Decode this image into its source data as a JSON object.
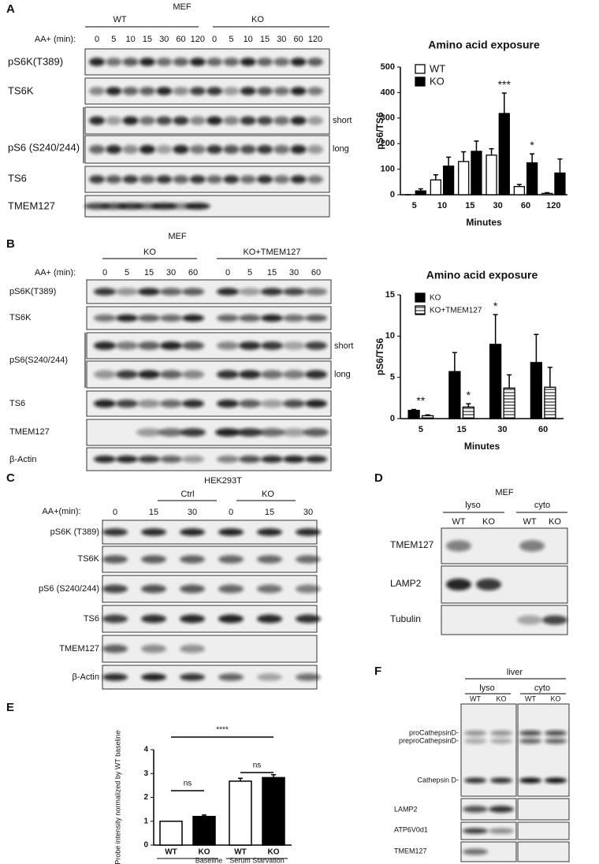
{
  "figure": {
    "A": {
      "label": "A",
      "cell_line": "MEF",
      "groups": [
        "WT",
        "KO"
      ],
      "lane_title": "AA+ (min):",
      "lanes": [
        "0",
        "5",
        "10",
        "15",
        "30",
        "60",
        "120",
        "0",
        "5",
        "10",
        "15",
        "30",
        "60",
        "120"
      ],
      "rows": [
        "pS6K(T389)",
        "TS6K",
        "pS6 (S240/244)",
        "TS6",
        "TMEM127"
      ],
      "exposures": [
        "short",
        "long"
      ]
    },
    "B": {
      "label": "B",
      "cell_line": "MEF",
      "groups": [
        "KO",
        "KO+TMEM127"
      ],
      "lane_title": "AA+ (min):",
      "lanes": [
        "0",
        "5",
        "15",
        "30",
        "60",
        "0",
        "5",
        "15",
        "30",
        "60"
      ],
      "rows": [
        "pS6K(T389)",
        "TS6K",
        "pS6(S240/244)",
        "TS6",
        "TMEM127",
        "β-Actin"
      ],
      "exposures": [
        "short",
        "long"
      ]
    },
    "C": {
      "label": "C",
      "cell_line": "HEK293T",
      "groups": [
        "Ctrl",
        "KO"
      ],
      "lane_title": "AA+(min):",
      "lanes": [
        "0",
        "15",
        "30",
        "0",
        "15",
        "30"
      ],
      "rows": [
        "pS6K (T389)",
        "TS6K",
        "pS6 (S240/244)",
        "TS6",
        "TMEM127",
        "β-Actin"
      ]
    },
    "D": {
      "label": "D",
      "cell_line": "MEF",
      "groups": [
        "lyso",
        "cyto"
      ],
      "lanes": [
        "WT",
        "KO",
        "WT",
        "KO"
      ],
      "rows": [
        "TMEM127",
        "LAMP2",
        "Tubulin"
      ]
    },
    "E": {
      "label": "E"
    },
    "F": {
      "label": "F",
      "tissue": "liver",
      "groups": [
        "lyso",
        "cyto"
      ],
      "lanes": [
        "WT",
        "KO",
        "WT",
        "KO"
      ],
      "rows": [
        "proCathepsinD-",
        "preproCathepsinD-",
        "Cathepsin D-",
        "LAMP2",
        "ATP6V0d1",
        "TMEM127"
      ]
    }
  },
  "chart_data": [
    {
      "type": "bar",
      "title": "Amino acid exposure",
      "xlabel": "Minutes",
      "ylabel": "pS6/TS6",
      "categories": [
        "5",
        "10",
        "15",
        "30",
        "60",
        "120"
      ],
      "series": [
        {
          "name": "WT",
          "color": "#ffffff",
          "values": [
            0,
            58,
            130,
            155,
            32,
            5
          ],
          "errors": [
            0,
            20,
            38,
            25,
            8,
            3
          ]
        },
        {
          "name": "KO",
          "color": "#000000",
          "values": [
            15,
            112,
            170,
            318,
            125,
            85
          ],
          "errors": [
            8,
            35,
            40,
            80,
            35,
            55
          ]
        }
      ],
      "ylim": [
        0,
        500
      ],
      "yticks": [
        0,
        100,
        200,
        300,
        400,
        500
      ],
      "annotations": [
        "***",
        "*"
      ],
      "legend": "top-left"
    },
    {
      "type": "bar",
      "title": "Amino acid exposure",
      "xlabel": "Minutes",
      "ylabel": "pS6/TS6",
      "categories": [
        "5",
        "15",
        "30",
        "60"
      ],
      "series": [
        {
          "name": "KO",
          "color": "#000000",
          "values": [
            1.0,
            5.7,
            9.0,
            6.8
          ],
          "errors": [
            0.1,
            2.3,
            3.6,
            3.4
          ]
        },
        {
          "name": "KO+TMEM127",
          "color": "#ffffff",
          "hatch": "horizontal",
          "values": [
            0.35,
            1.4,
            3.7,
            3.8
          ],
          "errors": [
            0.1,
            0.4,
            1.6,
            2.4
          ]
        }
      ],
      "ylim": [
        0,
        15
      ],
      "yticks": [
        0,
        5,
        10,
        15
      ],
      "annotations": [
        "**",
        "*",
        "*"
      ],
      "legend": "top-left"
    },
    {
      "type": "bar",
      "ylabel": "Probe intensity normalized by WT baseline",
      "categories": [
        "WT",
        "KO",
        "WT",
        "KO"
      ],
      "values": [
        1.0,
        1.2,
        2.68,
        2.83
      ],
      "errors": [
        0,
        0.06,
        0.12,
        0.12
      ],
      "colors": [
        "#ffffff",
        "#000000",
        "#ffffff",
        "#000000"
      ],
      "group_labels": [
        "Baseline",
        "Serum Starvation"
      ],
      "ylim": [
        0,
        4
      ],
      "yticks": [
        0,
        1,
        2,
        3,
        4
      ],
      "annotations": [
        "ns",
        "ns",
        "****"
      ]
    }
  ]
}
